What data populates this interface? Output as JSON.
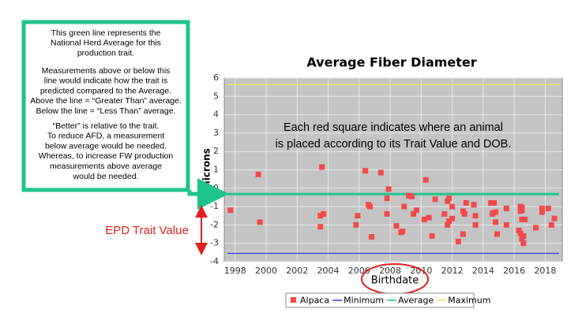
{
  "chart_data": {
    "type": "scatter",
    "title": "Average Fiber Diameter",
    "xlabel": "Birthdate",
    "ylabel": "microns",
    "xlim": [
      1997.3,
      2019.1
    ],
    "xticks": [
      1998,
      2000,
      2002,
      2004,
      2006,
      2008,
      2010,
      2012,
      2014,
      2016,
      2018
    ],
    "ylim": [
      -4,
      6
    ],
    "yticks": [
      -4,
      -3,
      -2,
      -1,
      0,
      1,
      2,
      3,
      4,
      5,
      6
    ],
    "grid": true,
    "series": [
      {
        "name": "Alpaca",
        "color": "#f24a4a",
        "x": [
          1997.7,
          1999.5,
          1999.6,
          2003.6,
          2003.5,
          2003.7,
          2003.5,
          2005.9,
          2005.8,
          2006.4,
          2006.7,
          2006.6,
          2006.8,
          2007.4,
          2007.9,
          2007.8,
          2007.8,
          2008.4,
          2008.8,
          2008.7,
          2008.9,
          2009.2,
          2009.4,
          2009.5,
          2009.7,
          2010.3,
          2010.2,
          2010.5,
          2010.7,
          2010.9,
          2011.5,
          2011.7,
          2011.8,
          2011.7,
          2011.8,
          2012.0,
          2012.0,
          2012.4,
          2012.7,
          2012.7,
          2012.8,
          2012.9,
          2013.4,
          2013.5,
          2013.5,
          2014.5,
          2014.6,
          2014.7,
          2014.6,
          2014.8,
          2014.8,
          2014.9,
          2015.5,
          2015.5,
          2016.4,
          2016.4,
          2016.5,
          2016.3,
          2016.4,
          2016.5,
          2016.6,
          2016.5,
          2016.6,
          2016.7,
          2016.5,
          2017.4,
          2017.8,
          2017.8,
          2018.2,
          2018.4,
          2018.6
        ],
        "values": [
          -1.2,
          0.75,
          -1.85,
          1.15,
          -1.5,
          -1.4,
          -2.1,
          -1.5,
          -2.0,
          0.95,
          -1.0,
          -0.9,
          -2.65,
          0.85,
          -0.05,
          -0.55,
          -1.4,
          -2.05,
          -2.35,
          -2.4,
          -1.0,
          -0.4,
          -0.45,
          -1.4,
          -1.2,
          0.45,
          -1.7,
          -1.6,
          -2.6,
          -0.6,
          -1.4,
          -0.7,
          -0.55,
          -2.0,
          -1.8,
          -1.65,
          -1.0,
          -2.9,
          -2.5,
          -1.25,
          -1.4,
          -0.8,
          -0.9,
          -1.5,
          -2.0,
          -0.8,
          -1.35,
          -0.8,
          -1.4,
          -1.85,
          -1.3,
          -2.5,
          -1.1,
          -2.0,
          -1.0,
          -1.25,
          -1.7,
          -2.3,
          -2.45,
          -2.75,
          -2.6,
          -1.2,
          -3.0,
          -1.7,
          -1.05,
          -2.15,
          -1.1,
          -1.3,
          -1.1,
          -2.0,
          -1.65
        ]
      }
    ],
    "reference_lines": [
      {
        "name": "Minimum",
        "color": "#3a3ad8",
        "value": -3.55
      },
      {
        "name": "Average",
        "color": "#1fc48a",
        "value": -0.32
      },
      {
        "name": "Maximum",
        "color": "#eaea55",
        "value": 5.65
      }
    ],
    "plot_annotation": [
      "Each red square indicates where an animal",
      "is placed according to its Trait Value and DOB."
    ],
    "callout": [
      [
        "This green line represents the",
        "National Herd Average for this",
        "production trait."
      ],
      [
        "Measurements above or below this",
        "line would indicate how the trait is",
        "predicted compared to the Average.",
        "Above the line = “Greater Than” average.",
        "Below the line = “Less Than” average."
      ],
      [
        "“Better” is relative to the trait.",
        "To reduce AFD, a measurement",
        "below average would be needed.",
        "Whereas, to increase FW production",
        "measurements above average",
        "would be needed."
      ]
    ],
    "side_label": "EPD  Trait Value"
  }
}
